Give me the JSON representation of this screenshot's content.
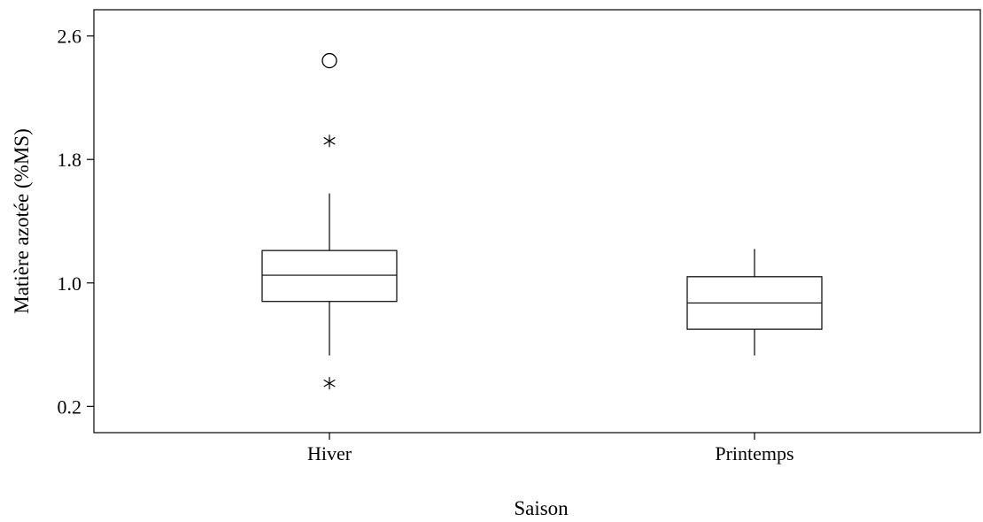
{
  "chart_data": {
    "type": "boxplot",
    "title": "",
    "xlabel": "Saison",
    "ylabel": "Matière azotée (%MS)",
    "ylim": [
      0.03,
      2.77
    ],
    "yticks": [
      0.2,
      1.0,
      1.8,
      2.6
    ],
    "ytick_labels": [
      "0.2",
      "1.0",
      "1.8",
      "2.6"
    ],
    "grid": false,
    "categories": [
      "Hiver",
      "Printemps"
    ],
    "boxes": [
      {
        "category": "Hiver",
        "q1": 0.88,
        "median": 1.05,
        "q3": 1.21,
        "whisker_low": 0.53,
        "whisker_high": 1.58,
        "outliers": [
          {
            "value": 2.44,
            "marker": "circle"
          },
          {
            "value": 1.92,
            "marker": "asterisk"
          },
          {
            "value": 0.35,
            "marker": "asterisk"
          }
        ]
      },
      {
        "category": "Printemps",
        "q1": 0.7,
        "median": 0.87,
        "q3": 1.04,
        "whisker_low": 0.53,
        "whisker_high": 1.22,
        "outliers": []
      }
    ]
  }
}
